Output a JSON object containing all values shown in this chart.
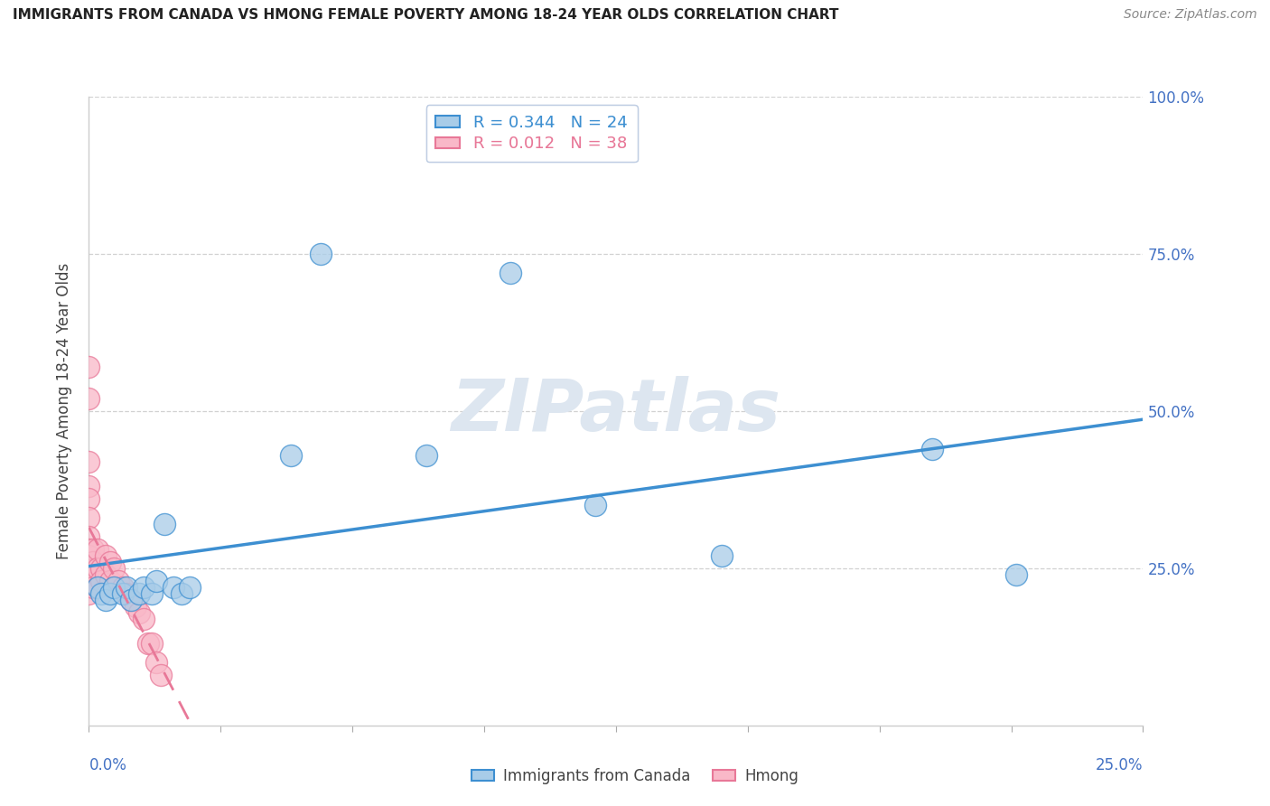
{
  "title": "IMMIGRANTS FROM CANADA VS HMONG FEMALE POVERTY AMONG 18-24 YEAR OLDS CORRELATION CHART",
  "source": "Source: ZipAtlas.com",
  "ylabel": "Female Poverty Among 18-24 Year Olds",
  "legend_label_blue": "Immigrants from Canada",
  "legend_label_pink": "Hmong",
  "R_blue": 0.344,
  "N_blue": 24,
  "R_pink": 0.012,
  "N_pink": 38,
  "xlim": [
    0.0,
    0.25
  ],
  "ylim": [
    0.0,
    1.0
  ],
  "xtick_left_label": "0.0%",
  "xtick_right_label": "25.0%",
  "yticks": [
    0.25,
    0.5,
    0.75,
    1.0
  ],
  "ytick_labels": [
    "25.0%",
    "50.0%",
    "75.0%",
    "100.0%"
  ],
  "blue_scatter_x": [
    0.002,
    0.003,
    0.004,
    0.005,
    0.006,
    0.008,
    0.009,
    0.01,
    0.012,
    0.013,
    0.015,
    0.016,
    0.018,
    0.02,
    0.022,
    0.024,
    0.055,
    0.08,
    0.1,
    0.12,
    0.15,
    0.2,
    0.22,
    0.048
  ],
  "blue_scatter_y": [
    0.22,
    0.21,
    0.2,
    0.21,
    0.22,
    0.21,
    0.22,
    0.2,
    0.21,
    0.22,
    0.21,
    0.23,
    0.32,
    0.22,
    0.21,
    0.22,
    0.75,
    0.43,
    0.72,
    0.35,
    0.27,
    0.44,
    0.24,
    0.43
  ],
  "pink_scatter_x": [
    0.0,
    0.0,
    0.0,
    0.0,
    0.0,
    0.0,
    0.0,
    0.0,
    0.0,
    0.0,
    0.0,
    0.0,
    0.001,
    0.001,
    0.001,
    0.001,
    0.002,
    0.002,
    0.002,
    0.003,
    0.003,
    0.004,
    0.004,
    0.005,
    0.005,
    0.006,
    0.006,
    0.007,
    0.008,
    0.009,
    0.01,
    0.011,
    0.012,
    0.013,
    0.014,
    0.015,
    0.016,
    0.017
  ],
  "pink_scatter_y": [
    0.57,
    0.52,
    0.42,
    0.38,
    0.36,
    0.33,
    0.3,
    0.28,
    0.27,
    0.25,
    0.23,
    0.21,
    0.28,
    0.26,
    0.24,
    0.22,
    0.28,
    0.25,
    0.22,
    0.25,
    0.23,
    0.27,
    0.24,
    0.26,
    0.23,
    0.25,
    0.22,
    0.23,
    0.22,
    0.21,
    0.2,
    0.19,
    0.18,
    0.17,
    0.13,
    0.13,
    0.1,
    0.08
  ],
  "blue_color": "#a8cce8",
  "pink_color": "#f9b8c8",
  "blue_line_color": "#3d8fd1",
  "pink_line_color": "#e87898",
  "watermark_color": "#dde6f0",
  "grid_color": "#cccccc",
  "right_axis_color": "#4472C4",
  "title_color": "#222222",
  "source_color": "#888888",
  "legend_border_color": "#b8c8e0"
}
